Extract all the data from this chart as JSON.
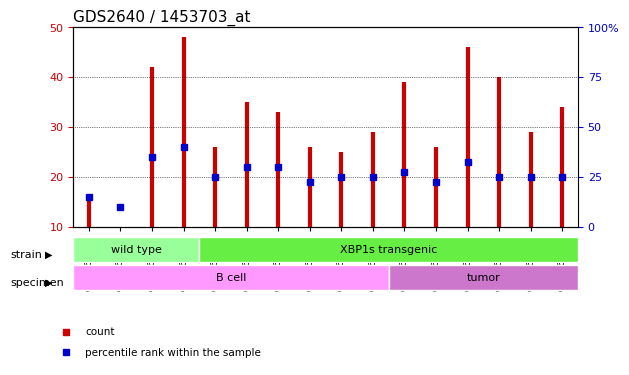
{
  "title": "GDS2640 / 1453703_at",
  "samples": [
    "GSM160730",
    "GSM160731",
    "GSM160739",
    "GSM160860",
    "GSM160861",
    "GSM160864",
    "GSM160865",
    "GSM160866",
    "GSM160867",
    "GSM160868",
    "GSM160869",
    "GSM160880",
    "GSM160881",
    "GSM160882",
    "GSM160883",
    "GSM160884"
  ],
  "counts": [
    16,
    10,
    42,
    48,
    26,
    35,
    33,
    26,
    25,
    29,
    39,
    26,
    46,
    40,
    29,
    34
  ],
  "percentiles": [
    16,
    14,
    24,
    26,
    20,
    22,
    22,
    19,
    20,
    20,
    21,
    19,
    23,
    20,
    20,
    20
  ],
  "ymin": 10,
  "ymax": 50,
  "yleft_ticks": [
    10,
    20,
    30,
    40,
    50
  ],
  "yright_ticks": [
    0,
    25,
    50,
    75,
    100
  ],
  "yright_labels": [
    "0",
    "25",
    "50",
    "75",
    "100%"
  ],
  "bar_color": "#cc0000",
  "dot_color": "#0000cc",
  "strain_groups": [
    {
      "label": "wild type",
      "start": 0,
      "end": 4
    },
    {
      "label": "XBP1s transgenic",
      "start": 4,
      "end": 16
    }
  ],
  "specimen_groups": [
    {
      "label": "B cell",
      "start": 0,
      "end": 10
    },
    {
      "label": "tumor",
      "start": 10,
      "end": 16
    }
  ],
  "strain_colors": [
    "#99ff99",
    "#66ee44"
  ],
  "specimen_colors": [
    "#ff99ff",
    "#cc77cc"
  ],
  "legend_items": [
    {
      "label": "count",
      "color": "#cc0000"
    },
    {
      "label": "percentile rank within the sample",
      "color": "#0000cc"
    }
  ],
  "bg_color": "#ffffff",
  "plot_bg": "#ffffff",
  "tick_label_color_left": "#cc0000",
  "tick_label_color_right": "#0000cc",
  "title_fontsize": 11,
  "bar_width": 0.4
}
